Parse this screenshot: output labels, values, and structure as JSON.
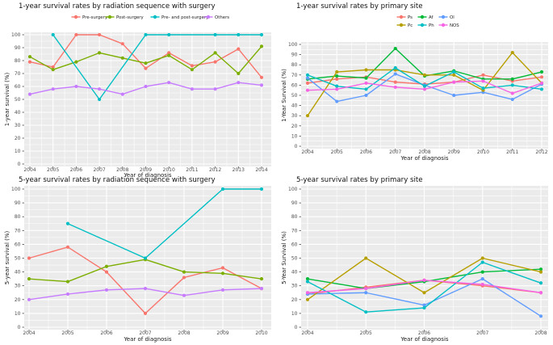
{
  "figure": {
    "background": "#ffffff"
  },
  "style": {
    "panel_bg": "#EBEBEB",
    "grid_color": "#FFFFFF",
    "tick_label_color": "#4D4D4D",
    "tick_mark_color": "#333333"
  },
  "chart_data": [
    {
      "type": "line",
      "title": "1-year survival rates by radiation sequence with surgery",
      "xlabel": "Year of diagnosis",
      "ylabel": "1-year survival (%)",
      "x_ticks": [
        2004,
        2005,
        2006,
        2007,
        2008,
        2009,
        2010,
        2011,
        2012,
        2013,
        2014
      ],
      "ylim": [
        0,
        100
      ],
      "y_tick_step": 10,
      "grid": true,
      "legend_visible": true,
      "legend_position": "top",
      "series": [
        {
          "name": "Pre-surgery",
          "color": "#F8766D",
          "points": [
            [
              2004,
              79
            ],
            [
              2005,
              75
            ],
            [
              2006,
              100
            ],
            [
              2007,
              100
            ],
            [
              2008,
              93
            ],
            [
              2009,
              74
            ],
            [
              2010,
              86
            ],
            [
              2011,
              76
            ],
            [
              2012,
              79
            ],
            [
              2013,
              89
            ],
            [
              2014,
              67
            ]
          ]
        },
        {
          "name": "Post-surgery",
          "color": "#7CAE00",
          "points": [
            [
              2004,
              83
            ],
            [
              2005,
              73
            ],
            [
              2006,
              79
            ],
            [
              2007,
              86
            ],
            [
              2008,
              82
            ],
            [
              2009,
              78
            ],
            [
              2010,
              84
            ],
            [
              2011,
              73
            ],
            [
              2012,
              86
            ],
            [
              2013,
              70
            ],
            [
              2014,
              91
            ]
          ]
        },
        {
          "name": "Pre- and post-surgery",
          "color": "#00BFC4",
          "points": [
            [
              2005,
              100
            ],
            [
              2007,
              50
            ],
            [
              2009,
              100
            ],
            [
              2010,
              100
            ],
            [
              2012,
              100
            ],
            [
              2013,
              100
            ],
            [
              2014,
              100
            ]
          ]
        },
        {
          "name": "Others",
          "color": "#C77CFF",
          "points": [
            [
              2004,
              54
            ],
            [
              2005,
              58
            ],
            [
              2006,
              60
            ],
            [
              2007,
              58
            ],
            [
              2008,
              54
            ],
            [
              2009,
              60
            ],
            [
              2010,
              63
            ],
            [
              2011,
              58
            ],
            [
              2012,
              58
            ],
            [
              2013,
              63
            ],
            [
              2014,
              61
            ]
          ]
        }
      ]
    },
    {
      "type": "line",
      "title": "1-year survival rates by primary site",
      "xlabel": "Year of diagnosis",
      "ylabel": "1-Year Survival (%)",
      "x_ticks": [
        2004,
        2005,
        2006,
        2007,
        2008,
        2009,
        2010,
        2011,
        2012
      ],
      "ylim": [
        0,
        100
      ],
      "y_tick_step": 10,
      "grid": true,
      "legend_visible": true,
      "legend_position": "top",
      "series": [
        {
          "name": "Ps",
          "color": "#F8766D",
          "points": [
            [
              2004,
              62
            ],
            [
              2005,
              66
            ],
            [
              2006,
              68
            ],
            [
              2007,
              63
            ],
            [
              2008,
              61
            ],
            [
              2009,
              63
            ],
            [
              2010,
              70
            ],
            [
              2011,
              64
            ],
            [
              2012,
              68
            ]
          ]
        },
        {
          "name": "Af",
          "color": "#00BA38",
          "points": [
            [
              2004,
              66
            ],
            [
              2005,
              69
            ],
            [
              2006,
              67
            ],
            [
              2007,
              96
            ],
            [
              2008,
              69
            ],
            [
              2009,
              74
            ],
            [
              2010,
              66
            ],
            [
              2011,
              66
            ],
            [
              2012,
              73
            ]
          ]
        },
        {
          "name": "Ol",
          "color": "#619CFF",
          "points": [
            [
              2004,
              67
            ],
            [
              2005,
              44
            ],
            [
              2006,
              50
            ],
            [
              2007,
              71
            ],
            [
              2008,
              60
            ],
            [
              2009,
              50
            ],
            [
              2010,
              53
            ],
            [
              2011,
              46
            ],
            [
              2012,
              61
            ]
          ]
        },
        {
          "name": "Pc",
          "color": "#B79F00",
          "points": [
            [
              2004,
              30
            ],
            [
              2005,
              73
            ],
            [
              2006,
              75
            ],
            [
              2007,
              75
            ],
            [
              2008,
              70
            ],
            [
              2009,
              70
            ],
            [
              2010,
              55
            ],
            [
              2011,
              92
            ],
            [
              2012,
              62
            ]
          ]
        },
        {
          "name": "Ph",
          "color": "#00BFC4",
          "points": [
            [
              2004,
              70
            ],
            [
              2005,
              59
            ],
            [
              2006,
              56
            ],
            [
              2007,
              77
            ],
            [
              2008,
              59
            ],
            [
              2009,
              73
            ],
            [
              2010,
              57
            ],
            [
              2011,
              60
            ],
            [
              2012,
              56
            ]
          ]
        },
        {
          "name": "NOS",
          "color": "#F564E3",
          "points": [
            [
              2004,
              55
            ],
            [
              2005,
              56
            ],
            [
              2006,
              62
            ],
            [
              2007,
              58
            ],
            [
              2008,
              56
            ],
            [
              2009,
              63
            ],
            [
              2010,
              64
            ],
            [
              2011,
              52
            ],
            [
              2012,
              62
            ]
          ]
        }
      ]
    },
    {
      "type": "line",
      "title": "5-year survival rates by radiation sequence with surgery",
      "xlabel": "Year of diagnosis",
      "ylabel": "5-year survival (%)",
      "x_ticks": [
        2004,
        2005,
        2006,
        2007,
        2008,
        2009,
        2010
      ],
      "ylim": [
        0,
        100
      ],
      "y_tick_step": 10,
      "grid": true,
      "legend_visible": false,
      "series": [
        {
          "name": "Pre-surgery",
          "color": "#F8766D",
          "points": [
            [
              2004,
              50
            ],
            [
              2005,
              58
            ],
            [
              2006,
              40
            ],
            [
              2007,
              10
            ],
            [
              2008,
              36
            ],
            [
              2009,
              43
            ],
            [
              2010,
              28
            ]
          ]
        },
        {
          "name": "Post-surgery",
          "color": "#7CAE00",
          "points": [
            [
              2004,
              35
            ],
            [
              2005,
              33
            ],
            [
              2006,
              44
            ],
            [
              2007,
              49
            ],
            [
              2008,
              40
            ],
            [
              2009,
              39
            ],
            [
              2010,
              35
            ]
          ]
        },
        {
          "name": "Pre- and post-surgery",
          "color": "#00BFC4",
          "points": [
            [
              2005,
              75
            ],
            [
              2007,
              50
            ],
            [
              2009,
              100
            ],
            [
              2010,
              100
            ]
          ]
        },
        {
          "name": "Others",
          "color": "#C77CFF",
          "points": [
            [
              2004,
              20
            ],
            [
              2005,
              24
            ],
            [
              2006,
              27
            ],
            [
              2007,
              28
            ],
            [
              2008,
              23
            ],
            [
              2009,
              27
            ],
            [
              2010,
              28
            ]
          ]
        }
      ]
    },
    {
      "type": "line",
      "title": "5-year survival rates by primary site",
      "xlabel": "Year of diagnosis",
      "ylabel": "5-Year Survival (%)",
      "x_ticks": [
        2004,
        2005,
        2006,
        2007,
        2008
      ],
      "ylim": [
        0,
        100
      ],
      "y_tick_step": 10,
      "grid": true,
      "legend_visible": false,
      "series": [
        {
          "name": "Ps",
          "color": "#F8766D",
          "points": [
            [
              2004,
              24
            ],
            [
              2005,
              29
            ],
            [
              2006,
              34
            ],
            [
              2007,
              30
            ],
            [
              2008,
              25
            ]
          ]
        },
        {
          "name": "Af",
          "color": "#00BA38",
          "points": [
            [
              2004,
              35
            ],
            [
              2005,
              28
            ],
            [
              2006,
              33
            ],
            [
              2007,
              40
            ],
            [
              2008,
              42
            ]
          ]
        },
        {
          "name": "Ol",
          "color": "#619CFF",
          "points": [
            [
              2004,
              24
            ],
            [
              2005,
              25
            ],
            [
              2006,
              16
            ],
            [
              2007,
              35
            ],
            [
              2008,
              8
            ]
          ]
        },
        {
          "name": "Pc",
          "color": "#B79F00",
          "points": [
            [
              2004,
              20
            ],
            [
              2005,
              50
            ],
            [
              2006,
              25
            ],
            [
              2007,
              50
            ],
            [
              2008,
              40
            ]
          ]
        },
        {
          "name": "Ph",
          "color": "#00BFC4",
          "points": [
            [
              2004,
              33
            ],
            [
              2005,
              11
            ],
            [
              2006,
              14
            ],
            [
              2007,
              47
            ],
            [
              2008,
              32
            ]
          ]
        },
        {
          "name": "NOS",
          "color": "#F564E3",
          "points": [
            [
              2004,
              25
            ],
            [
              2005,
              28
            ],
            [
              2006,
              34
            ],
            [
              2007,
              31
            ],
            [
              2008,
              25
            ]
          ]
        }
      ]
    }
  ]
}
